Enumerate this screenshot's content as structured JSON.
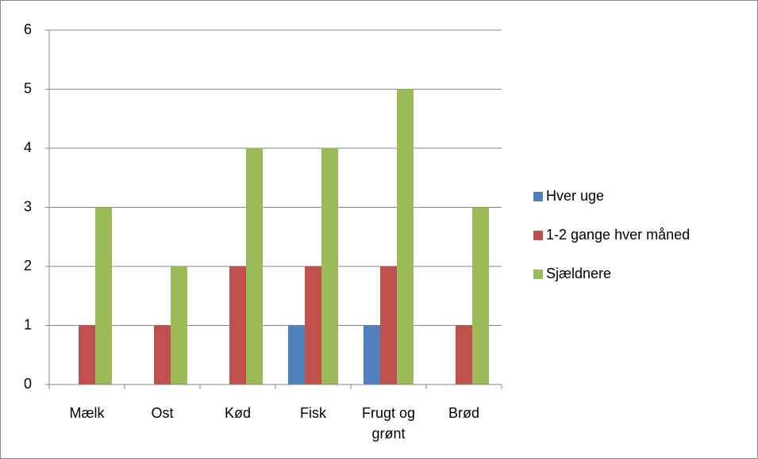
{
  "chart_data": {
    "type": "bar",
    "categories": [
      "Mælk",
      "Ost",
      "Kød",
      "Fisk",
      "Frugt og grønt",
      "Brød"
    ],
    "series": [
      {
        "name": "Hver uge",
        "color": "#4f81bd",
        "values": [
          0,
          0,
          0,
          1,
          1,
          0
        ]
      },
      {
        "name": "1-2 gange hver måned",
        "color": "#c0504d",
        "values": [
          1,
          1,
          2,
          2,
          2,
          1
        ]
      },
      {
        "name": "Sjældnere",
        "color": "#9bbb59",
        "values": [
          3,
          2,
          4,
          4,
          5,
          3
        ]
      }
    ],
    "ylim": [
      0,
      6
    ],
    "yticks": [
      0,
      1,
      2,
      3,
      4,
      5,
      6
    ],
    "grid": true,
    "legend": "right"
  }
}
